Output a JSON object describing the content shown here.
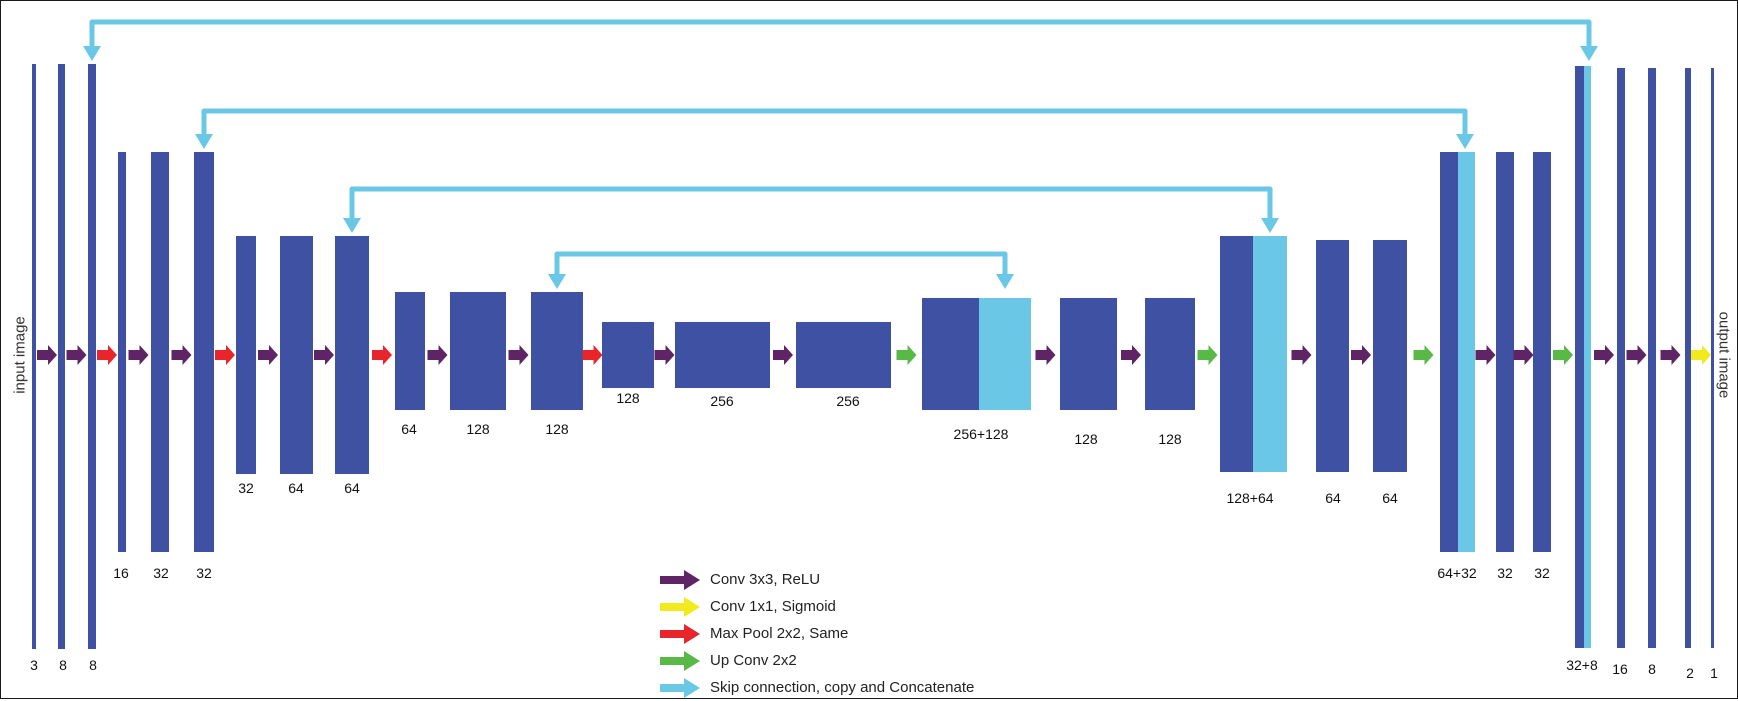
{
  "input_label": "input image",
  "output_label": "output image",
  "colors": {
    "block": "#3f51a3",
    "skip_block": "#6ac8e6",
    "conv_relu": "#5e2466",
    "conv_sigmoid": "#f2ea1c",
    "max_pool": "#e8252b",
    "up_conv": "#58b947",
    "skip": "#6ac8e6"
  },
  "legend": [
    {
      "label": "Conv 3x3, ReLU",
      "color": "#5e2466"
    },
    {
      "label": "Conv 1x1, Sigmoid",
      "color": "#f2ea1c"
    },
    {
      "label": "Max Pool 2x2, Same",
      "color": "#e8252b"
    },
    {
      "label": "Up  Conv 2x2",
      "color": "#58b947"
    },
    {
      "label": "Skip connection, copy and Concatenate",
      "color": "#6ac8e6"
    }
  ],
  "blocks": [
    {
      "label": "3"
    },
    {
      "label": "8"
    },
    {
      "label": "8"
    },
    {
      "label": "16"
    },
    {
      "label": "32"
    },
    {
      "label": "32"
    },
    {
      "label": "32"
    },
    {
      "label": "64"
    },
    {
      "label": "64"
    },
    {
      "label": "64"
    },
    {
      "label": "128"
    },
    {
      "label": "128"
    },
    {
      "label": "128"
    },
    {
      "label": "256"
    },
    {
      "label": "256"
    },
    {
      "label": "256+128"
    },
    {
      "label": "128"
    },
    {
      "label": "128"
    },
    {
      "label": "128+64"
    },
    {
      "label": "64"
    },
    {
      "label": "64"
    },
    {
      "label": "64+32"
    },
    {
      "label": "32"
    },
    {
      "label": "32"
    },
    {
      "label": "32+8"
    },
    {
      "label": "16"
    },
    {
      "label": "8"
    },
    {
      "label": "2"
    },
    {
      "label": "1"
    }
  ],
  "arrows": [
    "conv_relu",
    "conv_relu",
    "max_pool",
    "conv_relu",
    "conv_relu",
    "max_pool",
    "conv_relu",
    "conv_relu",
    "max_pool",
    "conv_relu",
    "conv_relu",
    "max_pool",
    "conv_relu",
    "conv_relu",
    "up_conv",
    "conv_relu",
    "conv_relu",
    "up_conv",
    "conv_relu",
    "conv_relu",
    "up_conv",
    "conv_relu",
    "conv_relu",
    "up_conv",
    "conv_relu",
    "conv_relu",
    "conv_relu",
    "conv_sigmoid"
  ]
}
